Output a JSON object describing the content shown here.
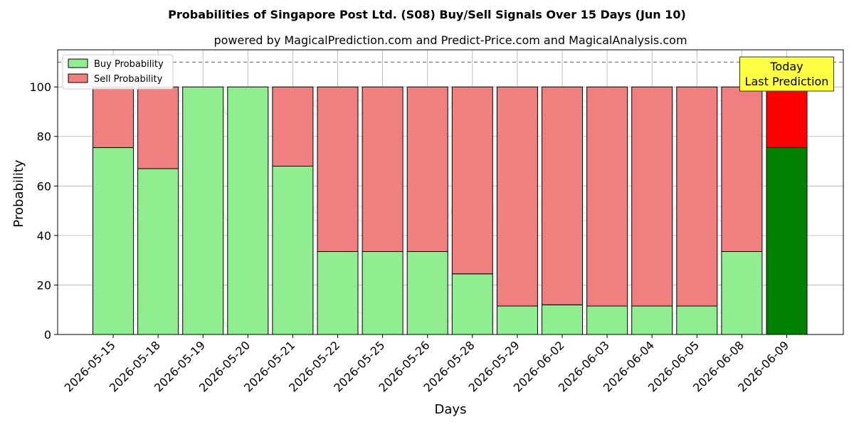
{
  "chart_data": {
    "type": "bar",
    "stacked": true,
    "title": "Probabilities of Singapore Post Ltd. (S08) Buy/Sell Signals Over 15 Days (Jun 10)",
    "subtitle": "powered by MagicalPrediction.com and Predict-Price.com and MagicalAnalysis.com",
    "xlabel": "Days",
    "ylabel": "Probability",
    "ylim": [
      0,
      115
    ],
    "yticks": [
      0,
      20,
      40,
      60,
      80,
      100
    ],
    "reference_line": 110,
    "grid": true,
    "legend_position": "top-left",
    "categories": [
      "2026-05-15",
      "2026-05-18",
      "2026-05-19",
      "2026-05-20",
      "2026-05-21",
      "2026-05-22",
      "2026-05-25",
      "2026-05-26",
      "2026-05-28",
      "2026-05-29",
      "2026-06-02",
      "2026-06-03",
      "2026-06-04",
      "2026-06-05",
      "2026-06-08",
      "2026-06-09"
    ],
    "series": [
      {
        "name": "Buy Probability",
        "color": "#90ee90",
        "highlight_color": "#008000",
        "values": [
          75.5,
          67,
          100,
          100,
          68,
          33.5,
          33.5,
          33.5,
          24.5,
          11.5,
          12,
          11.5,
          11.5,
          11.5,
          33.5,
          75.5
        ]
      },
      {
        "name": "Sell Probability",
        "color": "#f08080",
        "highlight_color": "#ff0000",
        "values": [
          24.5,
          33,
          0,
          0,
          32,
          66.5,
          66.5,
          66.5,
          75.5,
          88.5,
          88,
          88.5,
          88.5,
          88.5,
          66.5,
          24.5
        ]
      }
    ],
    "highlight_index": 15,
    "annotation": {
      "lines": [
        "Today",
        "Last Prediction"
      ],
      "bg": "#ffff44"
    },
    "watermarks": [
      "MagicalAnalysis.com",
      "MagicalPrediction.com"
    ]
  }
}
